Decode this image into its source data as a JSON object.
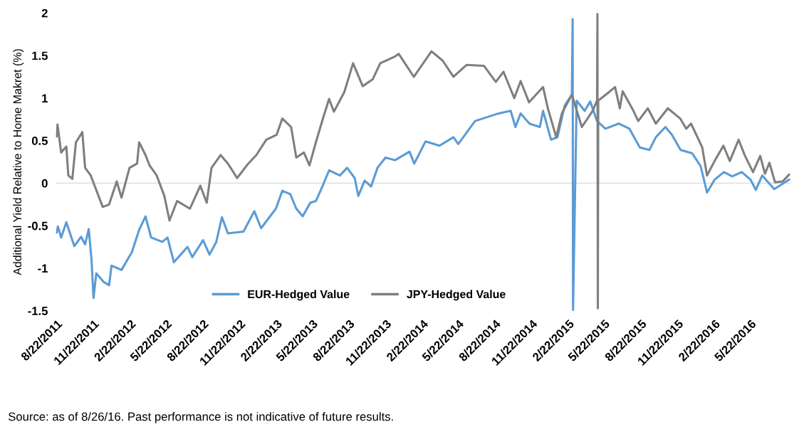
{
  "chart_data": {
    "type": "line",
    "ylabel": "Additional Yield Relative to Home Makret (%)",
    "annotations": [
      "Source: as of 8/26/16. Past performance is not indicative of future results."
    ],
    "xlim": [
      "2011-08-20",
      "2016-08-31"
    ],
    "xticks": [
      {
        "value": "2011-08-22",
        "label": "8/22/2011"
      },
      {
        "value": "2011-11-22",
        "label": "11/22/2011"
      },
      {
        "value": "2012-02-22",
        "label": "2/22/2012"
      },
      {
        "value": "2012-05-22",
        "label": "5/22/2012"
      },
      {
        "value": "2012-08-22",
        "label": "8/22/2012"
      },
      {
        "value": "2012-11-22",
        "label": "11/22/2012"
      },
      {
        "value": "2013-02-22",
        "label": "2/22/2013"
      },
      {
        "value": "2013-05-22",
        "label": "5/22/2013"
      },
      {
        "value": "2013-08-22",
        "label": "8/22/2013"
      },
      {
        "value": "2013-11-22",
        "label": "11/22/2013"
      },
      {
        "value": "2014-02-22",
        "label": "2/22/2014"
      },
      {
        "value": "2014-05-22",
        "label": "5/22/2014"
      },
      {
        "value": "2014-08-22",
        "label": "8/22/2014"
      },
      {
        "value": "2014-11-22",
        "label": "11/22/2014"
      },
      {
        "value": "2015-02-22",
        "label": "2/22/2015"
      },
      {
        "value": "2015-05-22",
        "label": "5/22/2015"
      },
      {
        "value": "2015-08-22",
        "label": "8/22/2015"
      },
      {
        "value": "2015-11-22",
        "label": "11/22/2015"
      },
      {
        "value": "2016-02-22",
        "label": "2/22/2016"
      },
      {
        "value": "2016-05-22",
        "label": "5/22/2016"
      }
    ],
    "ylim": [
      -1.5,
      2
    ],
    "yticks": [
      -1.5,
      -1,
      -0.5,
      0,
      0.5,
      1,
      1.5,
      2
    ],
    "grid": false,
    "legend": "bottom left",
    "ref_lines": [
      {
        "axis": "y",
        "value": 0,
        "label": null,
        "color": "#d9d9d9"
      }
    ],
    "series": [
      {
        "name": "EUR-Hedged Value",
        "color": "#5b9bd5",
        "x": [
          "2011-08-22",
          "2011-08-25",
          "2011-09-02",
          "2011-09-15",
          "2011-10-05",
          "2011-10-22",
          "2011-11-01",
          "2011-11-10",
          "2011-11-17",
          "2011-11-22",
          "2011-11-29",
          "2011-12-17",
          "2011-12-31",
          "2012-01-06",
          "2012-01-31",
          "2012-02-26",
          "2012-03-15",
          "2012-03-31",
          "2012-04-14",
          "2012-05-12",
          "2012-05-25",
          "2012-06-10",
          "2012-07-14",
          "2012-07-26",
          "2012-08-22",
          "2012-09-07",
          "2012-09-24",
          "2012-10-08",
          "2012-10-23",
          "2012-12-01",
          "2012-12-28",
          "2013-01-14",
          "2013-02-20",
          "2013-03-08",
          "2013-03-28",
          "2013-04-12",
          "2013-04-28",
          "2013-05-17",
          "2013-05-31",
          "2013-06-17",
          "2013-07-03",
          "2013-07-30",
          "2013-08-17",
          "2013-09-05",
          "2013-09-14",
          "2013-09-30",
          "2013-10-16",
          "2013-11-01",
          "2013-11-21",
          "2013-12-15",
          "2014-01-20",
          "2014-02-01",
          "2014-03-01",
          "2014-04-05",
          "2014-05-10",
          "2014-05-22",
          "2014-07-03",
          "2014-08-31",
          "2014-09-30",
          "2014-10-12",
          "2014-10-25",
          "2014-11-16",
          "2014-12-12",
          "2014-12-20",
          "2015-01-09",
          "2015-01-25",
          "2015-02-12",
          "2015-03-02",
          "2015-03-04",
          "2015-03-05",
          "2015-03-14",
          "2015-04-03",
          "2015-04-17",
          "2015-05-04",
          "2015-05-25",
          "2015-06-27",
          "2015-07-24",
          "2015-08-19",
          "2015-09-12",
          "2015-09-28",
          "2015-10-22",
          "2015-11-07",
          "2015-11-29",
          "2015-12-28",
          "2016-01-18",
          "2016-02-03",
          "2016-02-22",
          "2016-03-16",
          "2016-04-06",
          "2016-04-30",
          "2016-05-22",
          "2016-06-04",
          "2016-06-20",
          "2016-07-20",
          "2016-08-26"
        ],
        "values": [
          -0.58,
          -0.51,
          -0.64,
          -0.46,
          -0.74,
          -0.63,
          -0.72,
          -0.54,
          -0.9,
          -1.35,
          -1.06,
          -1.16,
          -1.2,
          -0.97,
          -1.02,
          -0.81,
          -0.55,
          -0.39,
          -0.64,
          -0.69,
          -0.64,
          -0.93,
          -0.75,
          -0.87,
          -0.67,
          -0.84,
          -0.69,
          -0.4,
          -0.59,
          -0.57,
          -0.33,
          -0.53,
          -0.3,
          -0.09,
          -0.13,
          -0.3,
          -0.39,
          -0.23,
          -0.21,
          -0.03,
          0.15,
          0.09,
          0.18,
          0.06,
          -0.15,
          0.03,
          -0.04,
          0.18,
          0.3,
          0.27,
          0.37,
          0.23,
          0.49,
          0.44,
          0.54,
          0.46,
          0.73,
          0.82,
          0.85,
          0.66,
          0.82,
          0.7,
          0.66,
          0.85,
          0.51,
          0.54,
          0.91,
          1.04,
          1.93,
          -1.5,
          0.97,
          0.85,
          0.96,
          0.73,
          0.64,
          0.7,
          0.64,
          0.42,
          0.39,
          0.54,
          0.66,
          0.57,
          0.39,
          0.35,
          0.2,
          -0.11,
          0.04,
          0.13,
          0.08,
          0.13,
          0.04,
          -0.08,
          0.09,
          -0.07,
          0.04
        ]
      },
      {
        "name": "JPY-Hedged Value",
        "color": "#7f7f7f",
        "x": [
          "2011-08-22",
          "2011-08-24",
          "2011-09-02",
          "2011-09-15",
          "2011-09-20",
          "2011-09-30",
          "2011-10-09",
          "2011-10-25",
          "2011-11-01",
          "2011-11-15",
          "2011-12-15",
          "2011-12-31",
          "2012-01-19",
          "2012-01-31",
          "2012-02-20",
          "2012-03-10",
          "2012-03-15",
          "2012-03-31",
          "2012-04-10",
          "2012-04-28",
          "2012-05-17",
          "2012-05-30",
          "2012-06-18",
          "2012-07-20",
          "2012-08-15",
          "2012-08-31",
          "2012-09-12",
          "2012-10-05",
          "2012-10-23",
          "2012-11-15",
          "2012-12-13",
          "2013-01-02",
          "2013-01-27",
          "2013-02-22",
          "2013-03-08",
          "2013-03-30",
          "2013-04-12",
          "2013-05-01",
          "2013-05-15",
          "2013-05-31",
          "2013-06-17",
          "2013-07-03",
          "2013-07-15",
          "2013-08-10",
          "2013-09-01",
          "2013-09-25",
          "2013-10-20",
          "2013-11-08",
          "2013-12-15",
          "2013-12-24",
          "2014-01-31",
          "2014-03-16",
          "2014-04-13",
          "2014-05-10",
          "2014-06-12",
          "2014-07-25",
          "2014-08-24",
          "2014-09-12",
          "2014-10-09",
          "2014-10-25",
          "2014-11-15",
          "2014-12-20",
          "2015-01-01",
          "2015-01-22",
          "2015-02-05",
          "2015-03-02",
          "2015-03-27",
          "2015-04-23",
          "2015-05-04",
          "2015-05-05",
          "2015-05-06",
          "2015-05-07",
          "2015-05-31",
          "2015-06-18",
          "2015-06-30",
          "2015-07-07",
          "2015-08-03",
          "2015-08-15",
          "2015-09-08",
          "2015-09-28",
          "2015-10-28",
          "2015-11-28",
          "2015-12-13",
          "2015-12-25",
          "2016-01-22",
          "2016-02-03",
          "2016-02-22",
          "2016-03-15",
          "2016-03-31",
          "2016-04-22",
          "2016-05-08",
          "2016-05-28",
          "2016-06-15",
          "2016-06-27",
          "2016-07-08",
          "2016-07-22",
          "2016-08-10",
          "2016-08-26"
        ],
        "values": [
          0.55,
          0.69,
          0.36,
          0.43,
          0.09,
          0.05,
          0.48,
          0.6,
          0.18,
          0.09,
          -0.28,
          -0.25,
          0.02,
          -0.17,
          0.18,
          0.23,
          0.48,
          0.33,
          0.21,
          0.09,
          -0.15,
          -0.44,
          -0.21,
          -0.3,
          -0.03,
          -0.23,
          0.18,
          0.33,
          0.23,
          0.06,
          0.23,
          0.33,
          0.51,
          0.57,
          0.76,
          0.66,
          0.3,
          0.36,
          0.21,
          0.48,
          0.75,
          0.99,
          0.84,
          1.07,
          1.41,
          1.14,
          1.22,
          1.41,
          1.49,
          1.52,
          1.25,
          1.55,
          1.44,
          1.25,
          1.39,
          1.38,
          1.19,
          1.31,
          1.0,
          1.2,
          0.95,
          1.13,
          0.88,
          0.54,
          0.82,
          1.04,
          0.66,
          0.85,
          0.97,
          1.99,
          -1.47,
          0.97,
          1.06,
          1.13,
          0.88,
          1.08,
          0.85,
          0.73,
          0.88,
          0.7,
          0.88,
          0.76,
          0.64,
          0.7,
          0.42,
          0.09,
          0.26,
          0.44,
          0.26,
          0.51,
          0.32,
          0.13,
          0.32,
          0.11,
          0.24,
          0.01,
          0.02,
          0.1
        ]
      }
    ]
  }
}
